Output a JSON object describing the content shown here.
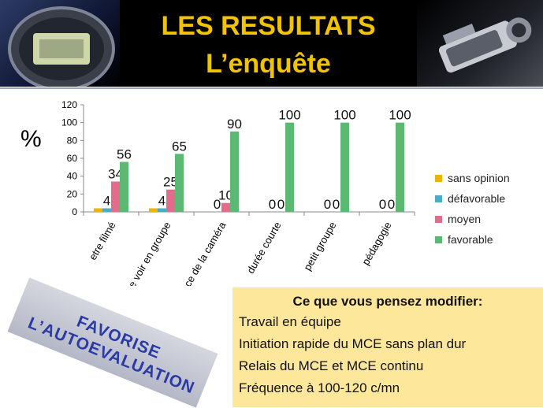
{
  "header": {
    "title_line1": "LES RESULTATS",
    "title_line2": "L’enquête"
  },
  "y_unit": "%",
  "chart_data": {
    "type": "bar",
    "categories": [
      "etre filmé",
      "se voir en groupe",
      "pertinence de la caméra",
      "durée courte",
      "petit groupe",
      "pédagogie"
    ],
    "series": [
      {
        "name": "sans opinion",
        "values": [
          4,
          4,
          0,
          0,
          0,
          0
        ],
        "color": "#f0b400"
      },
      {
        "name": "défavorable",
        "values": [
          4,
          4,
          0,
          0,
          0,
          0
        ],
        "color": "#4bacc6"
      },
      {
        "name": "moyen",
        "values": [
          34,
          25,
          10,
          0,
          0,
          0
        ],
        "color": "#e26d8a"
      },
      {
        "name": "favorable",
        "values": [
          56,
          65,
          90,
          100,
          100,
          100
        ],
        "color": "#5bb974"
      }
    ],
    "data_labels": [
      [
        "",
        "4",
        "34",
        "56"
      ],
      [
        "",
        "4",
        "25",
        "65"
      ],
      [
        "",
        "0",
        "10",
        "90"
      ],
      [
        "",
        "0",
        "0",
        "100"
      ],
      [
        "",
        "0",
        "0",
        "100"
      ],
      [
        "",
        "0",
        "0",
        "100"
      ]
    ],
    "yticks": [
      "0",
      "20",
      "40",
      "60",
      "80",
      "100",
      "120"
    ],
    "ylim": [
      0,
      120
    ],
    "grid": false,
    "legend": "right"
  },
  "stamp": {
    "line1": "FAVORISE",
    "line2": "L’AUTOEVALUATION"
  },
  "suggestions": {
    "title": "Ce que vous pensez modifier:",
    "items": [
      "Travail en équipe",
      "Initiation rapide du MCE sans plan dur",
      "Relais du MCE et MCE continu",
      "Fréquence  à 100-120 c/mn"
    ]
  }
}
